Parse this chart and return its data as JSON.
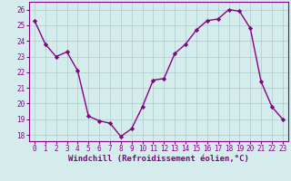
{
  "x": [
    0,
    1,
    2,
    3,
    4,
    5,
    6,
    7,
    8,
    9,
    10,
    11,
    12,
    13,
    14,
    15,
    16,
    17,
    18,
    19,
    20,
    21,
    22,
    23
  ],
  "y": [
    25.3,
    23.8,
    23.0,
    23.3,
    22.1,
    19.2,
    18.9,
    18.75,
    17.9,
    18.4,
    19.8,
    21.5,
    21.6,
    23.2,
    23.8,
    24.7,
    25.3,
    25.4,
    26.0,
    25.9,
    24.8,
    21.4,
    19.8,
    19.0
  ],
  "line_color": "#880088",
  "marker": "D",
  "marker_size": 2.2,
  "bg_color": "#d4ecec",
  "grid_color": "#aacccc",
  "xlabel": "Windchill (Refroidissement éolien,°C)",
  "ylim": [
    17.6,
    26.5
  ],
  "yticks": [
    18,
    19,
    20,
    21,
    22,
    23,
    24,
    25,
    26
  ],
  "xlim": [
    -0.5,
    23.5
  ],
  "xticks": [
    0,
    1,
    2,
    3,
    4,
    5,
    6,
    7,
    8,
    9,
    10,
    11,
    12,
    13,
    14,
    15,
    16,
    17,
    18,
    19,
    20,
    21,
    22,
    23
  ],
  "tick_color": "#880088",
  "tick_fontsize": 5.5,
  "xlabel_fontsize": 6.5,
  "linewidth": 1.0
}
